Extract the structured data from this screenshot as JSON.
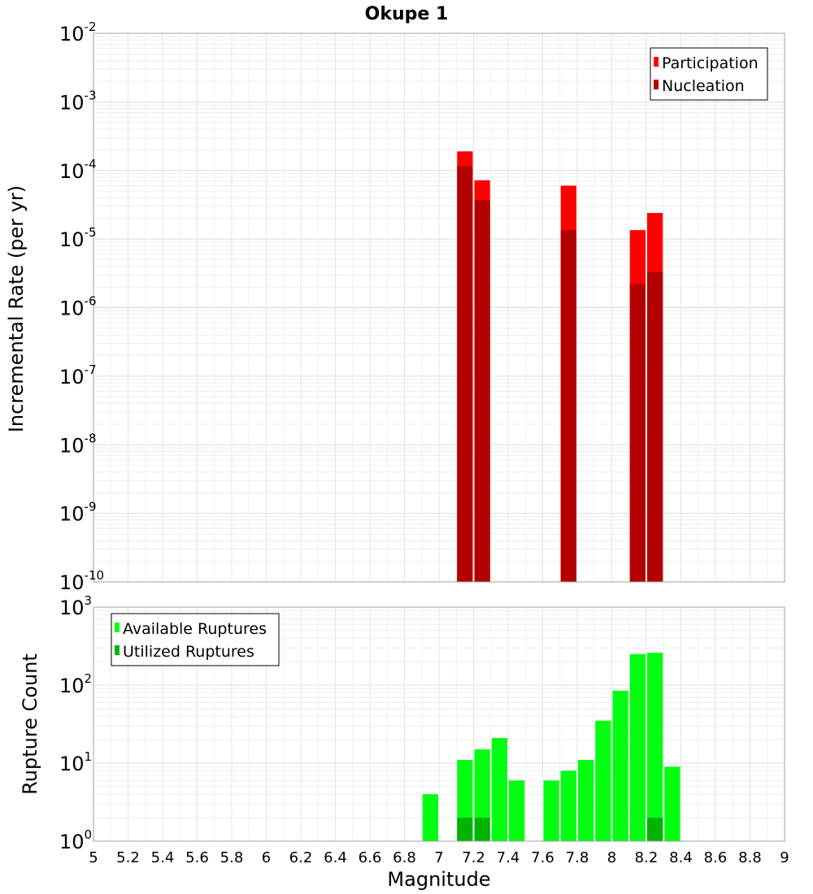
{
  "title": "Okupe 1",
  "chart_data": [
    {
      "type": "bar",
      "name": "top",
      "ylabel": "Incremental Rate (per yr)",
      "xlabel": "",
      "yscale": "log",
      "ylim_exp": [
        -10,
        -2
      ],
      "xlim": [
        5,
        9
      ],
      "grid": true,
      "legend": {
        "position": "top-right",
        "entries": [
          {
            "label": "Participation",
            "color": "#ff0000"
          },
          {
            "label": "Nucleation",
            "color": "#b30000"
          }
        ]
      },
      "series": [
        {
          "name": "Participation",
          "color": "#ff0000",
          "points": [
            [
              7.15,
              0.00019
            ],
            [
              7.25,
              7.2e-05
            ],
            [
              7.75,
              6e-05
            ],
            [
              8.15,
              1.35e-05
            ],
            [
              8.25,
              2.4e-05
            ]
          ]
        },
        {
          "name": "Nucleation",
          "color": "#b30000",
          "points": [
            [
              7.15,
              0.000115
            ],
            [
              7.25,
              3.7e-05
            ],
            [
              7.75,
              1.35e-05
            ],
            [
              8.15,
              2.2e-06
            ],
            [
              8.25,
              3.3e-06
            ]
          ]
        }
      ]
    },
    {
      "type": "bar",
      "name": "bottom",
      "ylabel": "Rupture Count",
      "xlabel": "Magnitude",
      "yscale": "log",
      "ylim_exp": [
        0,
        3
      ],
      "xlim": [
        5,
        9
      ],
      "grid": true,
      "legend": {
        "position": "top-left",
        "entries": [
          {
            "label": "Available Ruptures",
            "color": "#00ff10"
          },
          {
            "label": "Utilized Ruptures",
            "color": "#00b300"
          }
        ]
      },
      "series": [
        {
          "name": "Available Ruptures",
          "color": "#00ff10",
          "points": [
            [
              6.95,
              4
            ],
            [
              7.05,
              1
            ],
            [
              7.15,
              11
            ],
            [
              7.25,
              15
            ],
            [
              7.35,
              21
            ],
            [
              7.45,
              6
            ],
            [
              7.65,
              6
            ],
            [
              7.75,
              8
            ],
            [
              7.85,
              11
            ],
            [
              7.95,
              35
            ],
            [
              8.05,
              85
            ],
            [
              8.15,
              250
            ],
            [
              8.25,
              260
            ],
            [
              8.35,
              9
            ]
          ]
        },
        {
          "name": "Utilized Ruptures",
          "color": "#00b300",
          "points": [
            [
              7.15,
              2
            ],
            [
              7.25,
              2
            ],
            [
              7.75,
              1
            ],
            [
              8.15,
              1
            ],
            [
              8.25,
              2
            ]
          ]
        }
      ]
    }
  ],
  "x_ticks": [
    "5",
    "5.2",
    "5.4",
    "5.6",
    "5.8",
    "6",
    "6.2",
    "6.4",
    "6.6",
    "6.8",
    "7",
    "7.2",
    "7.4",
    "7.6",
    "7.8",
    "8",
    "8.2",
    "8.4",
    "8.6",
    "8.8",
    "9"
  ],
  "y_tick_base": "10",
  "top_y_exponents": [
    "-2",
    "-3",
    "-4",
    "-5",
    "-6",
    "-7",
    "-8",
    "-9",
    "-10"
  ],
  "bottom_y_exponents": [
    "3",
    "2",
    "1",
    "0"
  ]
}
